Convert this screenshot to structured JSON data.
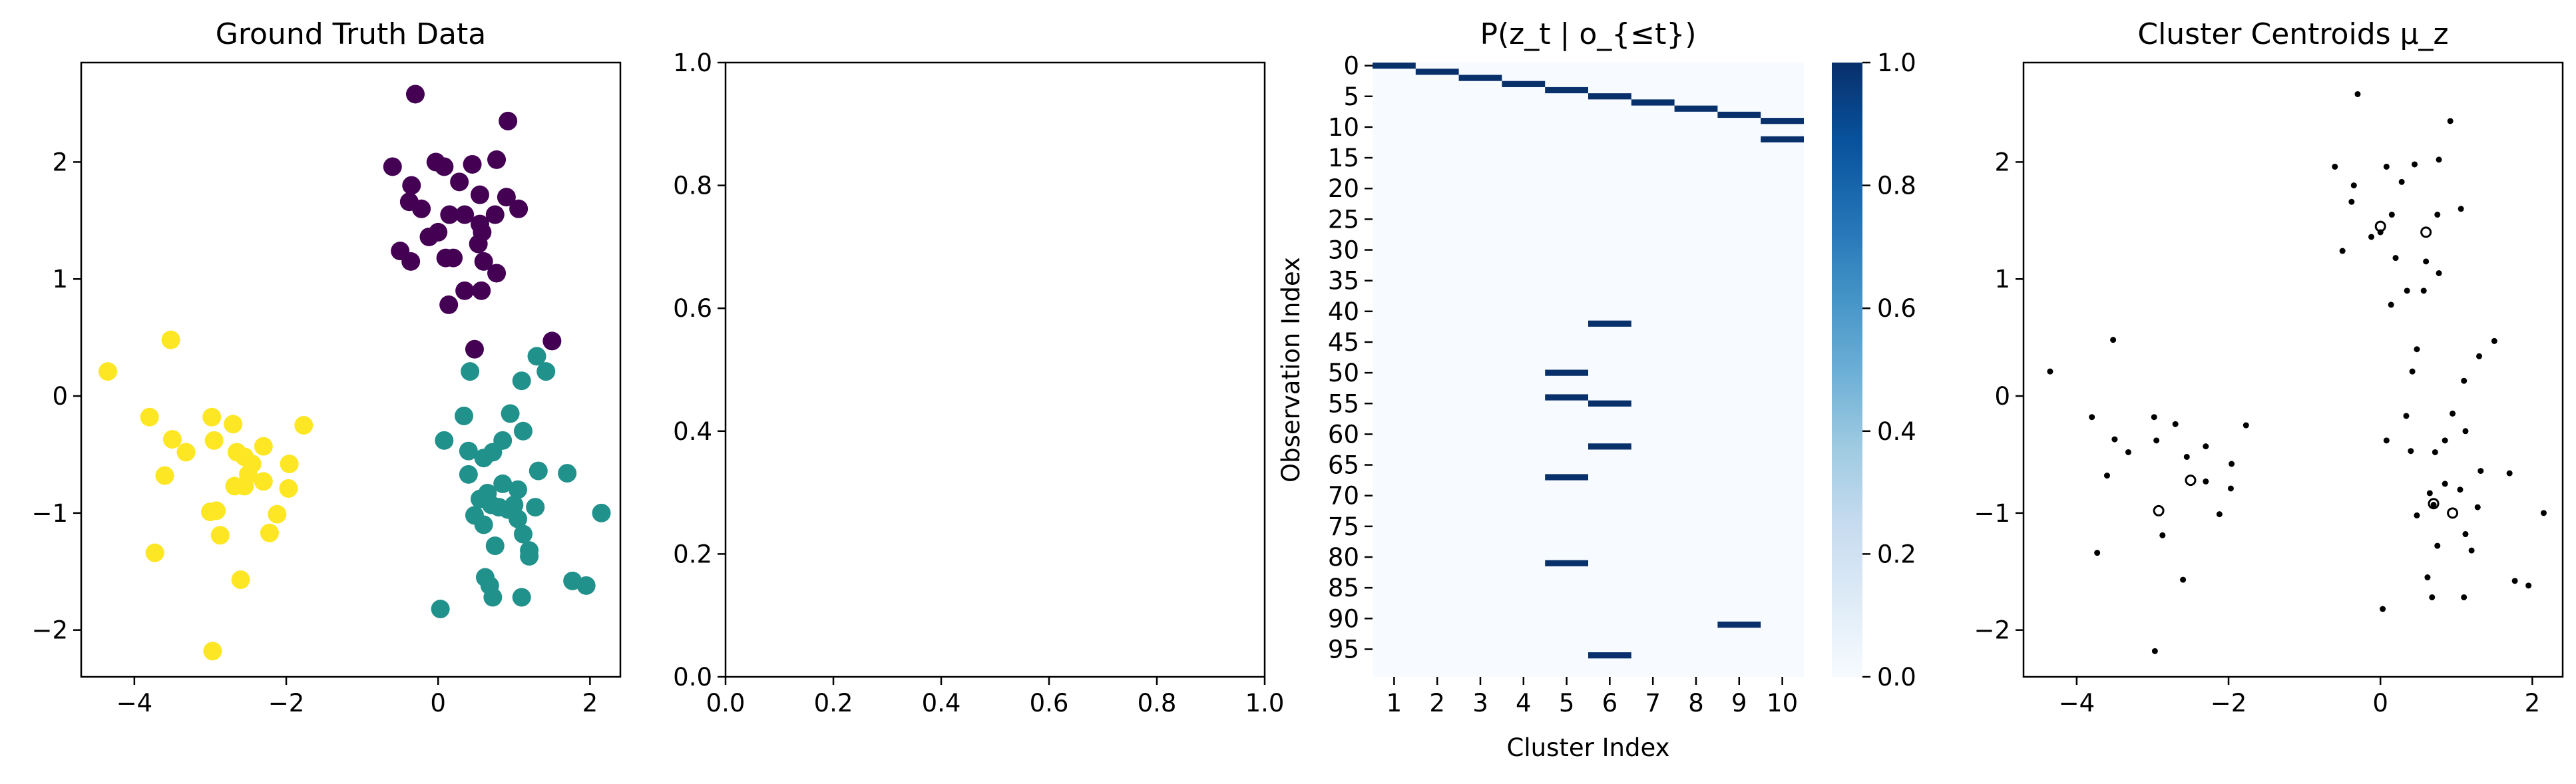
{
  "chart_data": [
    {
      "type": "scatter",
      "title": "Ground Truth Data",
      "xlim": [
        -4.7,
        2.4
      ],
      "ylim": [
        -2.4,
        2.85
      ],
      "xticks": [
        -4,
        -2,
        0,
        2
      ],
      "xtick_labels": [
        "−4",
        "−2",
        "0",
        "2"
      ],
      "yticks": [
        -2,
        -1,
        0,
        1,
        2
      ],
      "ytick_labels": [
        "−2",
        "−1",
        "0",
        "1",
        "2"
      ],
      "grid": false,
      "series": [
        {
          "color": "#440154",
          "points": [
            [
              -0.3,
              2.58
            ],
            [
              0.92,
              2.35
            ],
            [
              -0.6,
              1.96
            ],
            [
              -0.03,
              2.0
            ],
            [
              0.08,
              1.96
            ],
            [
              0.45,
              1.98
            ],
            [
              0.77,
              2.02
            ],
            [
              -0.35,
              1.8
            ],
            [
              0.28,
              1.83
            ],
            [
              0.55,
              1.72
            ],
            [
              0.9,
              1.7
            ],
            [
              -0.38,
              1.66
            ],
            [
              -0.22,
              1.6
            ],
            [
              0.15,
              1.55
            ],
            [
              0.35,
              1.55
            ],
            [
              0.55,
              1.47
            ],
            [
              0.75,
              1.55
            ],
            [
              1.06,
              1.6
            ],
            [
              0.58,
              1.4
            ],
            [
              0.0,
              1.4
            ],
            [
              -0.12,
              1.36
            ],
            [
              0.53,
              1.3
            ],
            [
              -0.5,
              1.24
            ],
            [
              0.1,
              1.18
            ],
            [
              0.2,
              1.18
            ],
            [
              -0.36,
              1.15
            ],
            [
              0.6,
              1.15
            ],
            [
              0.77,
              1.05
            ],
            [
              0.57,
              0.9
            ],
            [
              0.35,
              0.9
            ],
            [
              0.14,
              0.78
            ],
            [
              0.48,
              0.4
            ],
            [
              1.5,
              0.47
            ]
          ]
        },
        {
          "color": "#21918c",
          "points": [
            [
              1.3,
              0.34
            ],
            [
              1.42,
              0.21
            ],
            [
              0.42,
              0.21
            ],
            [
              1.1,
              0.13
            ],
            [
              0.34,
              -0.17
            ],
            [
              0.95,
              -0.15
            ],
            [
              0.85,
              -0.38
            ],
            [
              1.12,
              -0.3
            ],
            [
              0.08,
              -0.38
            ],
            [
              0.4,
              -0.47
            ],
            [
              0.72,
              -0.48
            ],
            [
              0.6,
              -0.53
            ],
            [
              1.32,
              -0.64
            ],
            [
              0.4,
              -0.67
            ],
            [
              1.7,
              -0.66
            ],
            [
              0.85,
              -0.75
            ],
            [
              0.65,
              -0.83
            ],
            [
              1.05,
              -0.8
            ],
            [
              0.55,
              -0.88
            ],
            [
              0.7,
              -0.93
            ],
            [
              0.92,
              -0.97
            ],
            [
              0.8,
              -0.95
            ],
            [
              1.0,
              -0.93
            ],
            [
              1.28,
              -0.95
            ],
            [
              2.15,
              -1.0
            ],
            [
              0.48,
              -1.02
            ],
            [
              1.05,
              -1.05
            ],
            [
              0.6,
              -1.1
            ],
            [
              1.12,
              -1.18
            ],
            [
              0.75,
              -1.28
            ],
            [
              1.2,
              -1.32
            ],
            [
              0.62,
              -1.55
            ],
            [
              1.77,
              -1.58
            ],
            [
              1.95,
              -1.62
            ],
            [
              0.68,
              -1.62
            ],
            [
              1.2,
              -1.37
            ],
            [
              0.72,
              -1.72
            ],
            [
              1.1,
              -1.72
            ],
            [
              0.03,
              -1.82
            ]
          ]
        },
        {
          "color": "#fde725",
          "points": [
            [
              -4.35,
              0.21
            ],
            [
              -3.52,
              0.48
            ],
            [
              -3.8,
              -0.18
            ],
            [
              -2.98,
              -0.18
            ],
            [
              -2.7,
              -0.24
            ],
            [
              -1.77,
              -0.25
            ],
            [
              -3.5,
              -0.37
            ],
            [
              -2.95,
              -0.38
            ],
            [
              -2.3,
              -0.43
            ],
            [
              -3.32,
              -0.48
            ],
            [
              -2.65,
              -0.48
            ],
            [
              -2.55,
              -0.52
            ],
            [
              -2.45,
              -0.58
            ],
            [
              -1.96,
              -0.58
            ],
            [
              -3.6,
              -0.68
            ],
            [
              -2.5,
              -0.67
            ],
            [
              -2.3,
              -0.73
            ],
            [
              -2.68,
              -0.77
            ],
            [
              -1.97,
              -0.79
            ],
            [
              -2.55,
              -0.77
            ],
            [
              -2.92,
              -0.98
            ],
            [
              -3.0,
              -0.99
            ],
            [
              -2.12,
              -1.01
            ],
            [
              -3.73,
              -1.34
            ],
            [
              -2.87,
              -1.19
            ],
            [
              -2.22,
              -1.17
            ],
            [
              -2.6,
              -1.57
            ],
            [
              -2.97,
              -2.18
            ]
          ]
        }
      ]
    },
    {
      "type": "scatter",
      "xlim": [
        0.0,
        1.0
      ],
      "ylim": [
        0.0,
        1.0
      ],
      "xticks": [
        0.0,
        0.2,
        0.4,
        0.6,
        0.8,
        1.0
      ],
      "xtick_labels": [
        "0.0",
        "0.2",
        "0.4",
        "0.6",
        "0.8",
        "1.0"
      ],
      "yticks": [
        0.0,
        0.2,
        0.4,
        0.6,
        0.8,
        1.0
      ],
      "ytick_labels": [
        "0.0",
        "0.2",
        "0.4",
        "0.6",
        "0.8",
        "1.0"
      ],
      "grid": false,
      "series": []
    },
    {
      "type": "heatmap",
      "title": "P(z_t | o_{≤t})",
      "xlabel": "Cluster Index",
      "ylabel": "Observation Index",
      "n_rows": 100,
      "n_cols": 10,
      "col_labels": [
        "1",
        "2",
        "3",
        "4",
        "5",
        "6",
        "7",
        "8",
        "9",
        "10"
      ],
      "row_tick_labels": [
        "0",
        "5",
        "10",
        "15",
        "20",
        "25",
        "30",
        "35",
        "40",
        "45",
        "50",
        "55",
        "60",
        "65",
        "70",
        "75",
        "80",
        "85",
        "90",
        "95"
      ],
      "colormap": "Blues",
      "vmin": 0.0,
      "vmax": 1.0,
      "colorbar_ticks": [
        "0.0",
        "0.2",
        "0.4",
        "0.6",
        "0.8",
        "1.0"
      ],
      "cells": [
        [
          0,
          1
        ],
        [
          1,
          2
        ],
        [
          2,
          3
        ],
        [
          3,
          4
        ],
        [
          4,
          5
        ],
        [
          5,
          6
        ],
        [
          6,
          7
        ],
        [
          7,
          8
        ],
        [
          8,
          9
        ],
        [
          9,
          10
        ],
        [
          12,
          10
        ],
        [
          42,
          6
        ],
        [
          50,
          5
        ],
        [
          54,
          5
        ],
        [
          55,
          6
        ],
        [
          62,
          6
        ],
        [
          67,
          5
        ],
        [
          81,
          5
        ],
        [
          91,
          9
        ],
        [
          96,
          6
        ]
      ]
    },
    {
      "type": "scatter",
      "title": "Cluster Centroids μ_z",
      "xlim": [
        -4.7,
        2.4
      ],
      "ylim": [
        -2.4,
        2.85
      ],
      "xticks": [
        -4,
        -2,
        0,
        2
      ],
      "xtick_labels": [
        "−4",
        "−2",
        "0",
        "2"
      ],
      "yticks": [
        -2,
        -1,
        0,
        1,
        2
      ],
      "ytick_labels": [
        "−2",
        "−1",
        "0",
        "1",
        "2"
      ],
      "grid": false,
      "series": [
        {
          "color": "#000000",
          "points": [
            [
              -0.3,
              2.58
            ],
            [
              0.92,
              2.35
            ],
            [
              -0.6,
              1.96
            ],
            [
              0.08,
              1.96
            ],
            [
              0.45,
              1.98
            ],
            [
              0.77,
              2.02
            ],
            [
              -0.35,
              1.8
            ],
            [
              0.28,
              1.83
            ],
            [
              -0.38,
              1.66
            ],
            [
              0.15,
              1.55
            ],
            [
              0.75,
              1.55
            ],
            [
              1.06,
              1.6
            ],
            [
              0.0,
              1.4
            ],
            [
              -0.12,
              1.36
            ],
            [
              -0.5,
              1.24
            ],
            [
              0.2,
              1.18
            ],
            [
              0.6,
              1.15
            ],
            [
              0.77,
              1.05
            ],
            [
              0.57,
              0.9
            ],
            [
              0.35,
              0.9
            ],
            [
              0.14,
              0.78
            ],
            [
              0.48,
              0.4
            ],
            [
              1.5,
              0.47
            ],
            [
              1.3,
              0.34
            ],
            [
              0.42,
              0.21
            ],
            [
              1.1,
              0.13
            ],
            [
              0.34,
              -0.17
            ],
            [
              0.95,
              -0.15
            ],
            [
              0.85,
              -0.38
            ],
            [
              1.12,
              -0.3
            ],
            [
              0.08,
              -0.38
            ],
            [
              0.4,
              -0.47
            ],
            [
              0.72,
              -0.48
            ],
            [
              1.32,
              -0.64
            ],
            [
              1.7,
              -0.66
            ],
            [
              0.85,
              -0.75
            ],
            [
              0.65,
              -0.83
            ],
            [
              1.05,
              -0.8
            ],
            [
              0.7,
              -0.93
            ],
            [
              1.28,
              -0.95
            ],
            [
              2.15,
              -1.0
            ],
            [
              0.48,
              -1.02
            ],
            [
              1.12,
              -1.18
            ],
            [
              0.75,
              -1.28
            ],
            [
              1.2,
              -1.32
            ],
            [
              0.62,
              -1.55
            ],
            [
              1.77,
              -1.58
            ],
            [
              1.95,
              -1.62
            ],
            [
              0.68,
              -1.72
            ],
            [
              1.1,
              -1.72
            ],
            [
              0.03,
              -1.82
            ],
            [
              -4.35,
              0.21
            ],
            [
              -3.52,
              0.48
            ],
            [
              -3.8,
              -0.18
            ],
            [
              -2.98,
              -0.18
            ],
            [
              -2.7,
              -0.24
            ],
            [
              -1.77,
              -0.25
            ],
            [
              -3.5,
              -0.37
            ],
            [
              -2.95,
              -0.38
            ],
            [
              -2.3,
              -0.43
            ],
            [
              -3.32,
              -0.48
            ],
            [
              -2.55,
              -0.52
            ],
            [
              -1.96,
              -0.58
            ],
            [
              -3.6,
              -0.68
            ],
            [
              -2.3,
              -0.73
            ],
            [
              -1.97,
              -0.79
            ],
            [
              -2.12,
              -1.01
            ],
            [
              -3.73,
              -1.34
            ],
            [
              -2.87,
              -1.19
            ],
            [
              -2.6,
              -1.57
            ],
            [
              -2.97,
              -2.18
            ]
          ]
        },
        {
          "color": "#000000",
          "name": "",
          "points": [
            [
              0.0,
              1.45
            ],
            [
              0.6,
              1.4
            ],
            [
              -2.5,
              -0.72
            ],
            [
              -2.92,
              -0.98
            ],
            [
              0.7,
              -0.92
            ],
            [
              0.95,
              -1.0
            ]
          ]
        }
      ]
    }
  ]
}
